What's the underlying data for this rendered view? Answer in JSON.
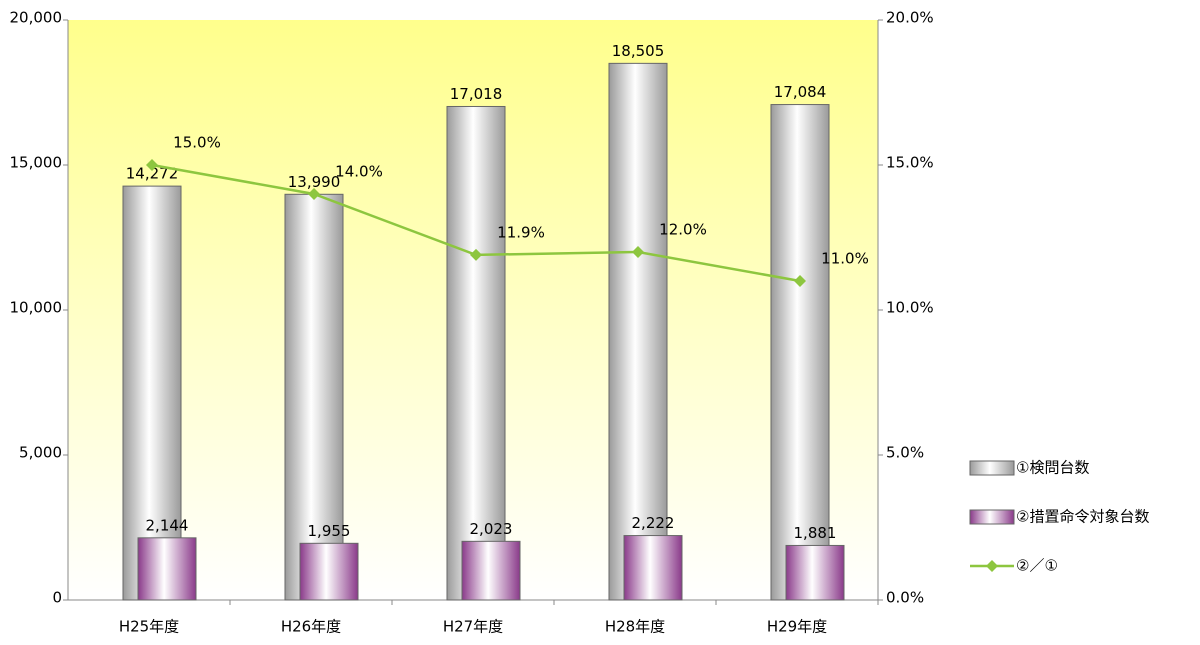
{
  "chart_data": {
    "type": "bar",
    "categories": [
      "H25年度",
      "H26年度",
      "H27年度",
      "H28年度",
      "H29年度"
    ],
    "series": [
      {
        "name": "①検問台数",
        "type": "bar",
        "color": "#9a9a9a",
        "values": [
          14272,
          13990,
          17018,
          18505,
          17084
        ],
        "value_labels": [
          "14,272",
          "13,990",
          "17,018",
          "18,505",
          "17,084"
        ]
      },
      {
        "name": "②措置命令対象台数",
        "type": "bar",
        "color": "#8a3a8a",
        "values": [
          2144,
          1955,
          2023,
          2222,
          1881
        ],
        "value_labels": [
          "2,144",
          "1,955",
          "2,023",
          "2,222",
          "1,881"
        ]
      },
      {
        "name": "②／①",
        "type": "line",
        "axis": "y2",
        "color": "#8dc63f",
        "values": [
          15.0,
          14.0,
          11.9,
          12.0,
          11.0
        ],
        "value_labels": [
          "15.0%",
          "14.0%",
          "11.9%",
          "12.0%",
          "11.0%"
        ]
      }
    ],
    "ylim": [
      0,
      20000
    ],
    "yticks": [
      0,
      {
        "value": 5000,
        "label": "5,000"
      },
      {
        "value": 10000,
        "label": "10,000"
      },
      {
        "value": 15000,
        "label": "15,000"
      },
      {
        "value": 20000,
        "label": "20,000"
      }
    ],
    "y2lim": [
      0,
      20
    ],
    "y2ticks": [
      {
        "value": 0,
        "label": "0.0%"
      },
      {
        "value": 5,
        "label": "5.0%"
      },
      {
        "value": 10,
        "label": "10.0%"
      },
      {
        "value": 15,
        "label": "15.0%"
      },
      {
        "value": 20,
        "label": "20.0%"
      }
    ],
    "legend": "right"
  }
}
